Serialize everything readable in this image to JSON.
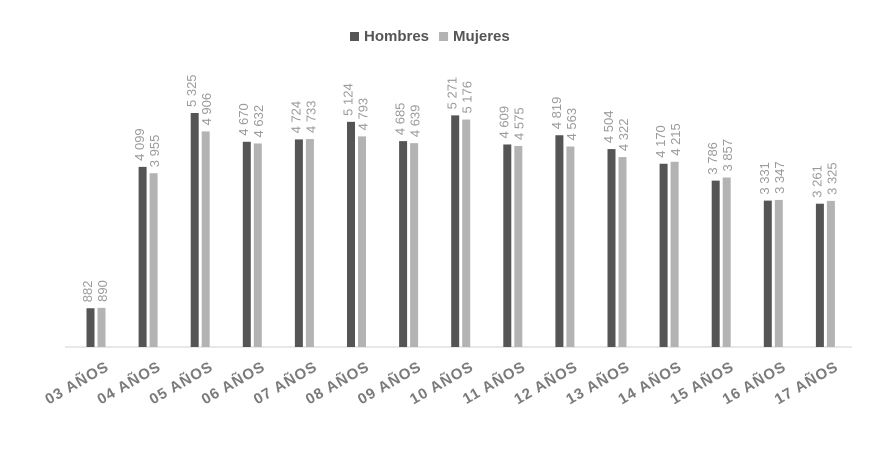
{
  "chart_data": {
    "type": "bar",
    "categories": [
      "03 AÑOS",
      "04 AÑOS",
      "05 AÑOS",
      "06 AÑOS",
      "07 AÑOS",
      "08 AÑOS",
      "09 AÑOS",
      "10 AÑOS",
      "11 AÑOS",
      "12 AÑOS",
      "13 AÑOS",
      "14 AÑOS",
      "15 AÑOS",
      "16 AÑOS",
      "17 AÑOS"
    ],
    "series": [
      {
        "name": "Hombres",
        "color": "#555555",
        "values": [
          882,
          4099,
          5325,
          4670,
          4724,
          5124,
          4685,
          5271,
          4609,
          4819,
          4504,
          4170,
          3786,
          3331,
          3261
        ],
        "value_labels": [
          "882",
          "4 099",
          "5 325",
          "4 670",
          "4 724",
          "5 124",
          "4 685",
          "5 271",
          "4 609",
          "4 819",
          "4 504",
          "4 170",
          "3 786",
          "3 331",
          "3 261"
        ]
      },
      {
        "name": "Mujeres",
        "color": "#b3b3b3",
        "values": [
          890,
          3955,
          4906,
          4632,
          4733,
          4793,
          4639,
          5176,
          4575,
          4563,
          4322,
          4215,
          3857,
          3347,
          3325
        ],
        "value_labels": [
          "890",
          "3 955",
          "4 906",
          "4 632",
          "4 733",
          "4 793",
          "4 639",
          "5 176",
          "4 575",
          "4 563",
          "4 322",
          "4 215",
          "3 857",
          "3 347",
          "3 325"
        ]
      }
    ],
    "legend": "top"
  }
}
